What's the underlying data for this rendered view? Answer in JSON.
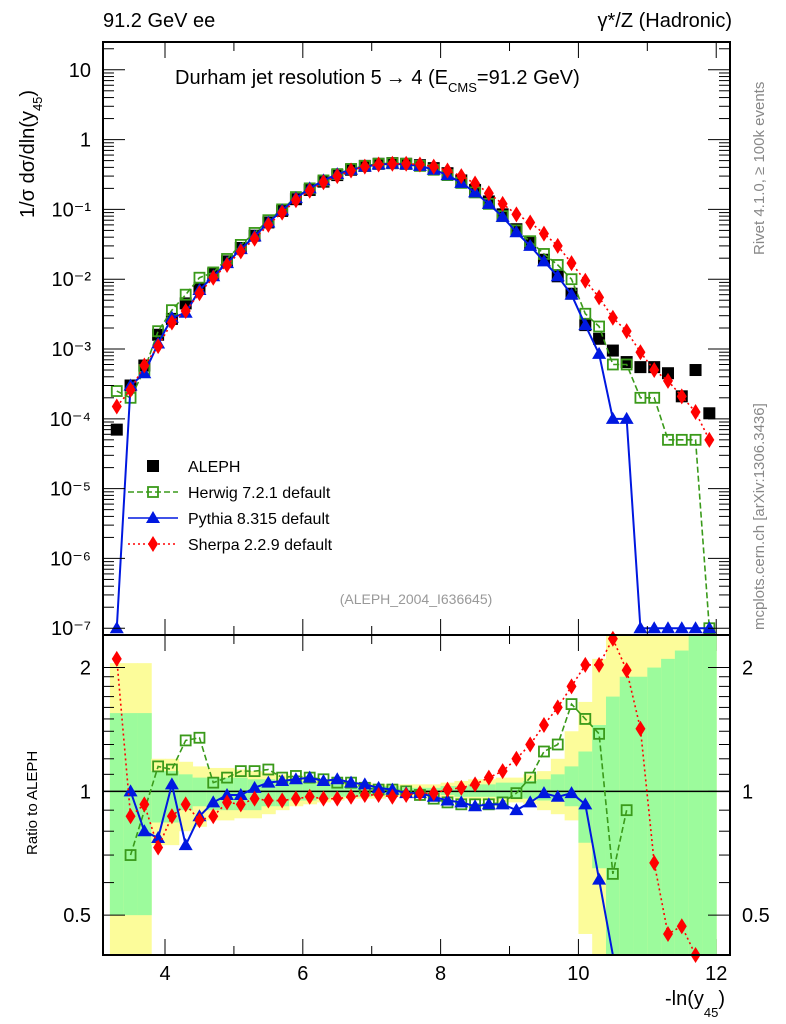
{
  "chart_data": [
    {
      "type": "scatter",
      "panel": "main",
      "title": "Durham jet resolution 5→ 4 (E_CMS=91.2 GeV)",
      "title_main": "Durham jet resolution 5",
      "title_arrow": "→",
      "title_rest": " 4 (E",
      "title_sub": "CMS",
      "title_end": "=91.2 GeV)",
      "top_left_label": "91.2 GeV ee",
      "top_right_label": "γ*/Z (Hadronic)",
      "ylabel": "1/σ  dσ/dln(y",
      "ylabel_sub": "45",
      "ylabel_end": ")",
      "yscale": "log",
      "ylim": [
        8e-08,
        25
      ],
      "xlim": [
        3.1,
        12.2
      ],
      "ytick_labels": [
        "10",
        "1",
        "10⁻¹",
        "10⁻²",
        "10⁻³",
        "10⁻⁴",
        "10⁻⁵",
        "10⁻⁶",
        "10⁻⁷"
      ],
      "ytick_values": [
        10,
        1,
        0.1,
        0.01,
        0.001,
        0.0001,
        1e-05,
        1e-06,
        1e-07
      ],
      "dataset_label": "(ALEPH_2004_I636645)",
      "side_label_top": "Rivet 4.1.0, ≥ 100k events",
      "side_label_bottom": "mcplots.cern.ch [arXiv:1306.3436]",
      "legend_position": "lower-left",
      "x": [
        3.3,
        3.5,
        3.7,
        3.9,
        4.1,
        4.3,
        4.5,
        4.7,
        4.9,
        5.1,
        5.3,
        5.5,
        5.7,
        5.9,
        6.1,
        6.3,
        6.5,
        6.7,
        6.9,
        7.1,
        7.3,
        7.5,
        7.7,
        7.9,
        8.1,
        8.3,
        8.5,
        8.7,
        8.9,
        9.1,
        9.3,
        9.5,
        9.7,
        9.9,
        10.1,
        10.3,
        10.5,
        10.7,
        10.9,
        11.1,
        11.3,
        11.5,
        11.7,
        11.9
      ],
      "series": [
        {
          "name": "ALEPH",
          "color": "#000000",
          "marker": "square-filled",
          "values": [
            7e-05,
            0.0003,
            0.00058,
            0.0016,
            0.0027,
            0.0045,
            0.0075,
            0.012,
            0.018,
            0.028,
            0.042,
            0.065,
            0.095,
            0.14,
            0.19,
            0.25,
            0.31,
            0.37,
            0.42,
            0.45,
            0.46,
            0.45,
            0.43,
            0.39,
            0.33,
            0.26,
            0.19,
            0.13,
            0.085,
            0.052,
            0.033,
            0.019,
            0.011,
            0.0062,
            0.0022,
            0.0014,
            0.00095,
            0.00065,
            0.00055,
            0.00055,
            0.00045,
            0.00021,
            0.0005,
            0.00012
          ]
        },
        {
          "name": "Herwig 7.2.1 default",
          "color": "#3a9a1a",
          "marker": "square-open",
          "line": "dashed",
          "values": [
            0.00025,
            0.0002,
            0.0005,
            0.0018,
            0.0036,
            0.006,
            0.0105,
            0.0125,
            0.0195,
            0.031,
            0.046,
            0.07,
            0.1,
            0.15,
            0.2,
            0.26,
            0.32,
            0.38,
            0.42,
            0.45,
            0.46,
            0.45,
            0.42,
            0.37,
            0.31,
            0.24,
            0.175,
            0.12,
            0.08,
            0.05,
            0.035,
            0.023,
            0.016,
            0.01,
            0.0032,
            0.0021,
            0.0006,
            0.0006,
            0.0002,
            0.0002,
            5e-05,
            5e-05,
            5e-05,
            1e-07
          ]
        },
        {
          "name": "Pythia 8.315 default",
          "color": "#0018e0",
          "marker": "triangle-filled",
          "line": "solid",
          "values": [
            1e-07,
            0.0003,
            0.00045,
            0.0012,
            0.0028,
            0.0033,
            0.007,
            0.011,
            0.017,
            0.027,
            0.041,
            0.065,
            0.097,
            0.145,
            0.2,
            0.26,
            0.32,
            0.37,
            0.41,
            0.44,
            0.45,
            0.44,
            0.42,
            0.37,
            0.31,
            0.24,
            0.175,
            0.12,
            0.078,
            0.047,
            0.03,
            0.018,
            0.011,
            0.006,
            0.0022,
            0.00085,
            0.0001,
            0.0001,
            1e-07,
            1e-07,
            1e-07,
            1e-07,
            1e-07,
            1e-07
          ]
        },
        {
          "name": "Sherpa 2.2.9 default",
          "color": "#ff0000",
          "marker": "diamond-filled",
          "line": "dotted",
          "values": [
            0.00015,
            0.00026,
            0.00058,
            0.0011,
            0.0024,
            0.0035,
            0.0063,
            0.0105,
            0.016,
            0.025,
            0.038,
            0.06,
            0.09,
            0.135,
            0.185,
            0.245,
            0.3,
            0.36,
            0.41,
            0.44,
            0.45,
            0.45,
            0.44,
            0.41,
            0.36,
            0.3,
            0.235,
            0.17,
            0.12,
            0.085,
            0.065,
            0.045,
            0.03,
            0.017,
            0.0095,
            0.0055,
            0.0028,
            0.0018,
            0.0009,
            0.0005,
            0.00035,
            0.00021,
            0.000125,
            5e-05
          ]
        }
      ]
    },
    {
      "type": "scatter",
      "panel": "ratio",
      "ylabel": "Ratio to ALEPH",
      "xlabel": "-ln(y",
      "xlabel_sub": "45",
      "xlabel_end": ")",
      "yscale": "log",
      "ylim": [
        0.4,
        2.4
      ],
      "xlim": [
        3.1,
        12.2
      ],
      "xtick_labels": [
        "4",
        "6",
        "8",
        "10",
        "12"
      ],
      "xtick_values": [
        4,
        6,
        8,
        10,
        12
      ],
      "ytick_labels": [
        "2",
        "1",
        "0.5"
      ],
      "ytick_values": [
        2,
        1,
        0.5
      ],
      "bands": {
        "edges": [
          3.2,
          3.4,
          3.6,
          3.8,
          4.0,
          4.2,
          4.4,
          4.6,
          4.8,
          5.0,
          5.2,
          5.4,
          5.6,
          5.8,
          6.0,
          6.2,
          6.4,
          6.6,
          6.8,
          7.0,
          7.2,
          7.4,
          7.6,
          7.8,
          8.0,
          8.2,
          8.4,
          8.6,
          8.8,
          9.0,
          9.2,
          9.4,
          9.6,
          9.8,
          10.0,
          10.2,
          10.4,
          10.6,
          10.8,
          11.0,
          11.2,
          11.4,
          11.6,
          11.8,
          12.0
        ],
        "green_low": [
          0.5,
          0.5,
          0.5,
          0.84,
          0.84,
          0.9,
          0.92,
          0.9,
          0.9,
          0.9,
          0.9,
          0.92,
          0.92,
          0.95,
          0.95,
          0.96,
          0.97,
          0.97,
          0.97,
          0.98,
          0.98,
          0.98,
          0.99,
          0.99,
          0.98,
          0.97,
          0.97,
          0.97,
          0.96,
          0.96,
          0.96,
          0.95,
          0.95,
          0.92,
          0.75,
          0.65,
          0.4,
          0.4,
          0.4,
          0.4,
          0.4,
          0.4,
          0.4,
          0.4
        ],
        "green_high": [
          1.55,
          1.55,
          1.55,
          1.12,
          1.12,
          1.1,
          1.08,
          1.08,
          1.08,
          1.08,
          1.07,
          1.07,
          1.06,
          1.06,
          1.05,
          1.04,
          1.04,
          1.03,
          1.03,
          1.03,
          1.03,
          1.02,
          1.02,
          1.02,
          1.03,
          1.03,
          1.04,
          1.04,
          1.05,
          1.05,
          1.06,
          1.07,
          1.1,
          1.15,
          1.25,
          1.45,
          1.7,
          1.9,
          1.9,
          2.0,
          2.1,
          2.2,
          2.4,
          2.4
        ],
        "yellow_low": [
          0.4,
          0.4,
          0.4,
          0.74,
          0.74,
          0.8,
          0.82,
          0.85,
          0.85,
          0.86,
          0.86,
          0.88,
          0.9,
          0.92,
          0.93,
          0.94,
          0.95,
          0.96,
          0.96,
          0.96,
          0.97,
          0.97,
          0.97,
          0.97,
          0.97,
          0.96,
          0.95,
          0.95,
          0.94,
          0.94,
          0.93,
          0.9,
          0.88,
          0.85,
          0.45,
          0.4,
          0.4,
          0.4,
          0.4,
          0.4,
          0.4,
          0.4,
          0.4,
          0.4
        ],
        "yellow_high": [
          2.05,
          2.05,
          2.05,
          1.2,
          1.2,
          1.18,
          1.15,
          1.14,
          1.14,
          1.13,
          1.12,
          1.11,
          1.1,
          1.09,
          1.08,
          1.07,
          1.06,
          1.05,
          1.05,
          1.04,
          1.04,
          1.04,
          1.04,
          1.04,
          1.05,
          1.06,
          1.07,
          1.07,
          1.08,
          1.08,
          1.1,
          1.12,
          1.2,
          1.4,
          1.65,
          2.1,
          2.4,
          2.4,
          2.4,
          2.4,
          2.4,
          2.4,
          2.4,
          2.4
        ],
        "colors": {
          "green": "#9cfb9c",
          "yellow": "#fcfc9a"
        }
      },
      "series": [
        {
          "name": "Herwig 7.2.1 default",
          "color": "#3a9a1a",
          "values": [
            null,
            0.7,
            null,
            1.15,
            1.13,
            1.33,
            1.35,
            1.05,
            1.08,
            1.12,
            1.12,
            1.13,
            1.08,
            1.09,
            1.08,
            1.07,
            1.05,
            1.05,
            1.02,
            1.01,
            1.01,
            1.0,
            0.98,
            0.96,
            0.94,
            0.93,
            0.93,
            0.93,
            0.94,
            0.99,
            1.08,
            1.25,
            1.3,
            1.63,
            1.5,
            1.38,
            0.63,
            0.9,
            null,
            null,
            null,
            null,
            null,
            null
          ]
        },
        {
          "name": "Pythia 8.315 default",
          "color": "#0018e0",
          "values": [
            null,
            1.0,
            0.8,
            0.77,
            1.04,
            0.74,
            0.87,
            0.94,
            0.98,
            0.98,
            1.02,
            1.05,
            1.06,
            1.07,
            1.08,
            1.06,
            1.07,
            1.05,
            1.04,
            1.02,
            1.01,
            0.99,
            0.99,
            0.97,
            0.95,
            0.94,
            0.92,
            0.93,
            0.93,
            0.9,
            0.94,
            0.99,
            0.97,
            0.99,
            0.93,
            0.61,
            0.32,
            null,
            null,
            null,
            null,
            null,
            null,
            null
          ]
        },
        {
          "name": "Sherpa 2.2.9 default",
          "color": "#ff0000",
          "values": [
            2.1,
            0.87,
            0.93,
            0.73,
            0.87,
            0.93,
            0.85,
            0.87,
            0.94,
            0.93,
            0.96,
            0.95,
            0.95,
            0.96,
            0.97,
            0.96,
            0.96,
            0.97,
            0.98,
            0.98,
            0.97,
            0.98,
            0.99,
            0.99,
            1.01,
            1.02,
            1.04,
            1.08,
            1.12,
            1.2,
            1.3,
            1.45,
            1.6,
            1.8,
            2.03,
            2.03,
            2.35,
            1.97,
            1.42,
            0.67,
            0.45,
            0.47,
            0.4,
            0.37
          ]
        }
      ]
    }
  ]
}
